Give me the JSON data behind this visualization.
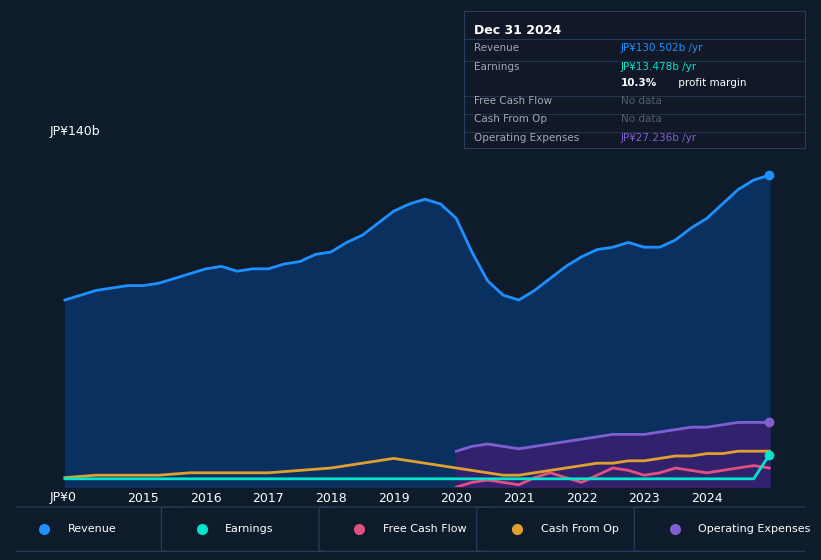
{
  "background_color": "#0d1b2a",
  "plot_bg_color": "#0d1b2a",
  "ylabel_top": "JP¥140b",
  "ylabel_bottom": "JP¥0",
  "xlim_start": 2013.5,
  "xlim_end": 2025.3,
  "ylim": [
    0,
    140
  ],
  "xticks": [
    2015,
    2016,
    2017,
    2018,
    2019,
    2020,
    2021,
    2022,
    2023,
    2024
  ],
  "grid_color": "#1e3048",
  "revenue_color": "#1e90ff",
  "revenue_fill_color": "#0a3060",
  "earnings_color": "#00e5cc",
  "free_cash_flow_color": "#e05080",
  "cash_from_op_color": "#e0a030",
  "opex_color": "#8060d0",
  "opex_fill_color": "#3a2070",
  "revenue_x": [
    2013.75,
    2014.0,
    2014.25,
    2014.5,
    2014.75,
    2015.0,
    2015.25,
    2015.5,
    2015.75,
    2016.0,
    2016.25,
    2016.5,
    2016.75,
    2017.0,
    2017.25,
    2017.5,
    2017.75,
    2018.0,
    2018.25,
    2018.5,
    2018.75,
    2019.0,
    2019.25,
    2019.5,
    2019.75,
    2020.0,
    2020.25,
    2020.5,
    2020.75,
    2021.0,
    2021.25,
    2021.5,
    2021.75,
    2022.0,
    2022.25,
    2022.5,
    2022.75,
    2023.0,
    2023.25,
    2023.5,
    2023.75,
    2024.0,
    2024.25,
    2024.5,
    2024.75,
    2025.0
  ],
  "revenue_y": [
    78,
    80,
    82,
    83,
    84,
    84,
    85,
    87,
    89,
    91,
    92,
    90,
    91,
    91,
    93,
    94,
    97,
    98,
    102,
    105,
    110,
    115,
    118,
    120,
    118,
    112,
    98,
    86,
    80,
    78,
    82,
    87,
    92,
    96,
    99,
    100,
    102,
    100,
    100,
    103,
    108,
    112,
    118,
    124,
    128,
    130
  ],
  "earnings_x": [
    2013.75,
    2014.0,
    2014.25,
    2014.5,
    2014.75,
    2015.0,
    2015.25,
    2015.5,
    2015.75,
    2016.0,
    2016.25,
    2016.5,
    2016.75,
    2017.0,
    2017.25,
    2017.5,
    2017.75,
    2018.0,
    2018.25,
    2018.5,
    2018.75,
    2019.0,
    2019.25,
    2019.5,
    2019.75,
    2020.0,
    2020.25,
    2020.5,
    2020.75,
    2021.0,
    2021.25,
    2021.5,
    2021.75,
    2022.0,
    2022.25,
    2022.5,
    2022.75,
    2023.0,
    2023.25,
    2023.5,
    2023.75,
    2024.0,
    2024.25,
    2024.5,
    2024.75,
    2025.0
  ],
  "earnings_y": [
    3.5,
    3.5,
    3.5,
    3.5,
    3.5,
    3.5,
    3.5,
    3.5,
    3.5,
    3.5,
    3.5,
    3.5,
    3.5,
    3.5,
    3.5,
    3.5,
    3.5,
    3.5,
    3.5,
    3.5,
    3.5,
    3.5,
    3.5,
    3.5,
    3.5,
    3.5,
    3.5,
    3.5,
    3.5,
    3.5,
    3.5,
    3.5,
    3.5,
    3.5,
    3.5,
    3.5,
    3.5,
    3.5,
    3.5,
    3.5,
    3.5,
    3.5,
    3.5,
    3.5,
    3.5,
    13.5
  ],
  "free_cash_flow_x": [
    2020.0,
    2020.25,
    2020.5,
    2020.75,
    2021.0,
    2021.25,
    2021.5,
    2021.75,
    2022.0,
    2022.25,
    2022.5,
    2022.75,
    2023.0,
    2023.25,
    2023.5,
    2023.75,
    2024.0,
    2024.25,
    2024.5,
    2024.75,
    2025.0
  ],
  "free_cash_flow_y": [
    0,
    2,
    3,
    2,
    1,
    4,
    6,
    4,
    2,
    5,
    8,
    7,
    5,
    6,
    8,
    7,
    6,
    7,
    8,
    9,
    8
  ],
  "cash_from_op_x": [
    2013.75,
    2014.0,
    2014.25,
    2014.5,
    2014.75,
    2015.0,
    2015.25,
    2015.5,
    2015.75,
    2016.0,
    2016.25,
    2016.5,
    2016.75,
    2017.0,
    2017.25,
    2017.5,
    2017.75,
    2018.0,
    2018.25,
    2018.5,
    2018.75,
    2019.0,
    2019.25,
    2019.5,
    2019.75,
    2020.0,
    2020.25,
    2020.5,
    2020.75,
    2021.0,
    2021.25,
    2021.5,
    2021.75,
    2022.0,
    2022.25,
    2022.5,
    2022.75,
    2023.0,
    2023.25,
    2023.5,
    2023.75,
    2024.0,
    2024.25,
    2024.5,
    2024.75,
    2025.0
  ],
  "cash_from_op_y": [
    4,
    4.5,
    5,
    5,
    5,
    5,
    5,
    5.5,
    6,
    6,
    6,
    6,
    6,
    6,
    6.5,
    7,
    7.5,
    8,
    9,
    10,
    11,
    12,
    11,
    10,
    9,
    8,
    7,
    6,
    5,
    5,
    6,
    7,
    8,
    9,
    10,
    10,
    11,
    11,
    12,
    13,
    13,
    14,
    14,
    15,
    15,
    15
  ],
  "opex_x": [
    2020.0,
    2020.25,
    2020.5,
    2020.75,
    2021.0,
    2021.25,
    2021.5,
    2021.75,
    2022.0,
    2022.25,
    2022.5,
    2022.75,
    2023.0,
    2023.25,
    2023.5,
    2023.75,
    2024.0,
    2024.25,
    2024.5,
    2024.75,
    2025.0
  ],
  "opex_y": [
    15,
    17,
    18,
    17,
    16,
    17,
    18,
    19,
    20,
    21,
    22,
    22,
    22,
    23,
    24,
    25,
    25,
    26,
    27,
    27,
    27
  ],
  "info_box": {
    "title": "Dec 31 2024",
    "bg_color": "#111827",
    "border_color": "#2a3f5f",
    "rows": [
      {
        "label": "Revenue",
        "value": "JP¥130.502b /yr",
        "value_color": "#1e90ff"
      },
      {
        "label": "Earnings",
        "value": "JP¥13.478b /yr",
        "value_color": "#00e5cc"
      },
      {
        "label": "",
        "value": "10.3% profit margin",
        "value_color": "#ffffff"
      },
      {
        "label": "Free Cash Flow",
        "value": "No data",
        "value_color": "#555e6e"
      },
      {
        "label": "Cash From Op",
        "value": "No data",
        "value_color": "#555e6e"
      },
      {
        "label": "Operating Expenses",
        "value": "JP¥27.236b /yr",
        "value_color": "#8060d0"
      }
    ]
  },
  "legend_items": [
    {
      "label": "Revenue",
      "color": "#1e90ff"
    },
    {
      "label": "Earnings",
      "color": "#00e5cc"
    },
    {
      "label": "Free Cash Flow",
      "color": "#e05080"
    },
    {
      "label": "Cash From Op",
      "color": "#e0a030"
    },
    {
      "label": "Operating Expenses",
      "color": "#8060d0"
    }
  ]
}
